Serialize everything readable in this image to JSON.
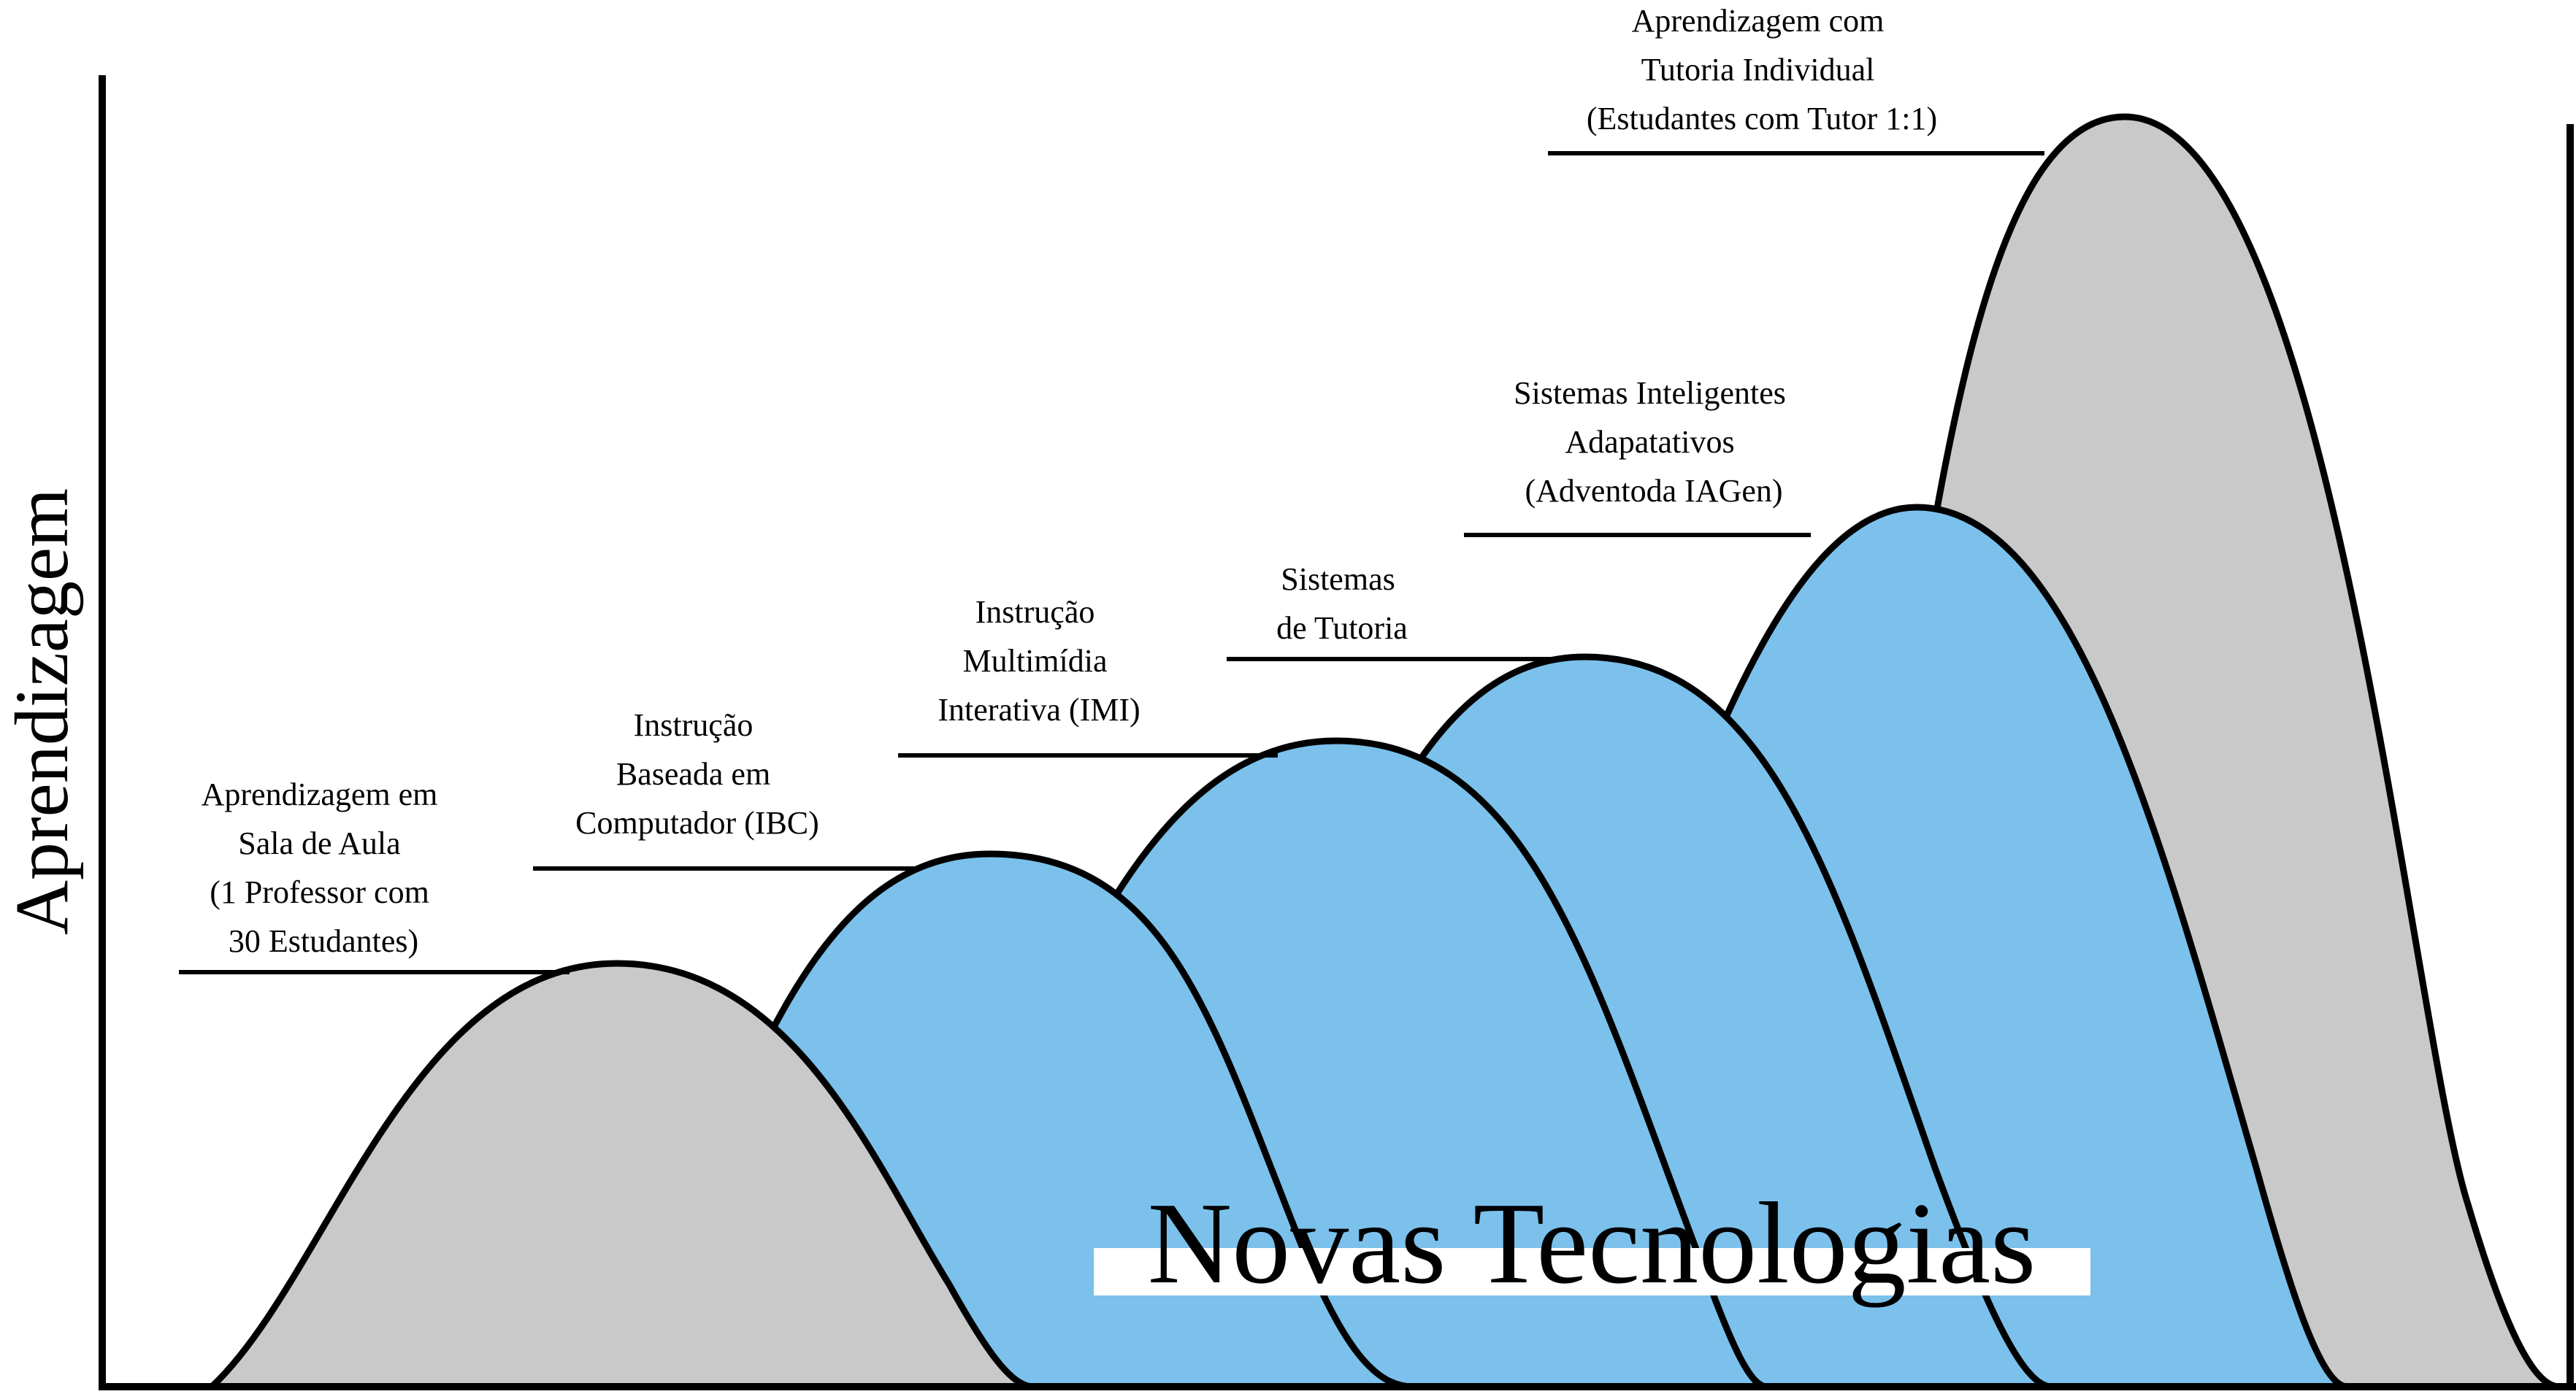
{
  "diagram": {
    "y_axis_label": "Aprendizagem",
    "banner": "Novas Tecnologias",
    "colors": {
      "classroom": "#c9c9c9",
      "technology": "#7bc1ec",
      "tutoring": "#c9c9c9",
      "outline": "#000000"
    },
    "stages": [
      {
        "id": "classroom",
        "color_group": "gray",
        "lines": [
          "Aprendizagem em",
          "Sala de Aula",
          "(1 Professor com",
          "30 Estudantes)"
        ]
      },
      {
        "id": "ibc",
        "color_group": "blue",
        "lines": [
          "Instrução",
          "Baseada em",
          "Computador (IBC)"
        ]
      },
      {
        "id": "imi",
        "color_group": "blue",
        "lines": [
          "Instrução",
          "Multimídia",
          "Interativa (IMI)"
        ]
      },
      {
        "id": "tutoring-systems",
        "color_group": "blue",
        "lines": [
          "Sistemas",
          "de Tutoria"
        ]
      },
      {
        "id": "adaptive",
        "color_group": "blue",
        "lines": [
          "Sistemas Inteligentes",
          "Adapatativos",
          "(Adventoda IAGen)"
        ]
      },
      {
        "id": "individual-tutoring",
        "color_group": "gray",
        "lines": [
          "Aprendizagem com",
          "Tutoria Individual",
          "(Estudantes com Tutor 1:1)"
        ]
      }
    ]
  }
}
